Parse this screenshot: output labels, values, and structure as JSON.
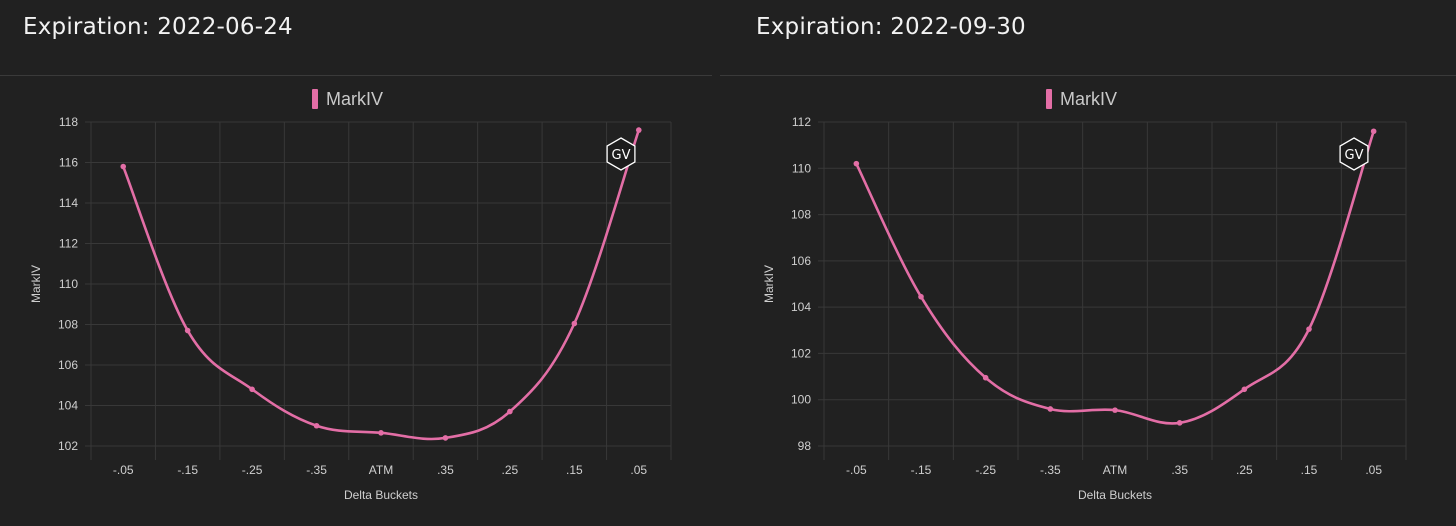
{
  "panels": [
    {
      "title": "Expiration: 2022-06-24",
      "watermark": "GV"
    },
    {
      "title": "Expiration: 2022-09-30",
      "watermark": "GV"
    }
  ],
  "chart_data": [
    {
      "type": "line",
      "legend": "MarkIV",
      "xlabel": "Delta Buckets",
      "ylabel": "MarkIV",
      "categories": [
        "-.05",
        "-.15",
        "-.25",
        "-.35",
        "ATM",
        ".35",
        ".25",
        ".15",
        ".05"
      ],
      "series": [
        {
          "name": "MarkIV",
          "values": [
            115.8,
            107.7,
            104.8,
            103.0,
            102.65,
            102.4,
            103.7,
            108.05,
            117.6
          ]
        }
      ],
      "ylim": [
        102,
        118
      ],
      "yticks": [
        102,
        104,
        106,
        108,
        110,
        112,
        114,
        116,
        118
      ],
      "grid": true,
      "legend_position": "top-center",
      "color": "#e36ea6"
    },
    {
      "type": "line",
      "legend": "MarkIV",
      "xlabel": "Delta Buckets",
      "ylabel": "MarkIV",
      "categories": [
        "-.05",
        "-.15",
        "-.25",
        "-.35",
        "ATM",
        ".35",
        ".25",
        ".15",
        ".05"
      ],
      "series": [
        {
          "name": "MarkIV",
          "values": [
            110.2,
            104.45,
            100.95,
            99.6,
            99.55,
            99.0,
            100.45,
            103.05,
            111.6
          ]
        }
      ],
      "ylim": [
        98,
        112
      ],
      "yticks": [
        98,
        100,
        102,
        104,
        106,
        108,
        110,
        112
      ],
      "grid": true,
      "legend_position": "top-center",
      "color": "#e36ea6"
    }
  ]
}
